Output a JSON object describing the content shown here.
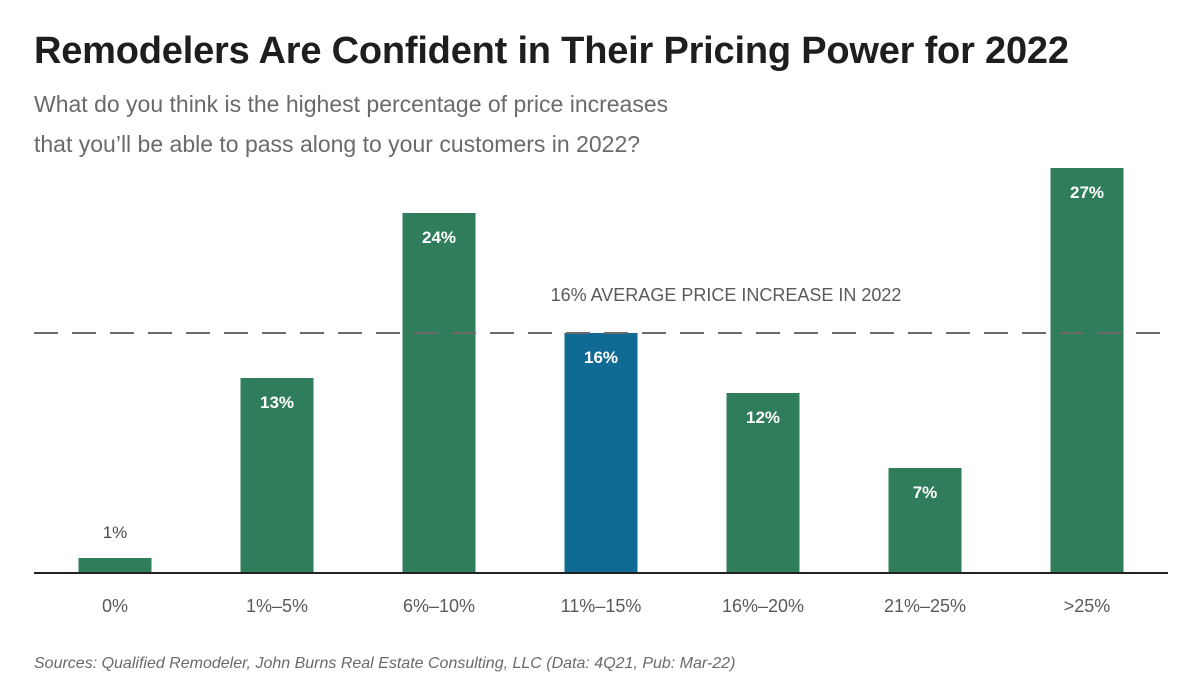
{
  "title": "Remodelers Are Confident in Their Pricing Power for 2022",
  "subtitle_line1": "What do you think is the highest percentage of price increases",
  "subtitle_line2": "that you’ll be able to pass along to your customers in 2022?",
  "source": "Sources: Qualified Remodeler, John Burns Real Estate Consulting, LLC (Data: 4Q21, Pub: Mar-22)",
  "colors": {
    "bar": "#2f7d5a",
    "highlight": "#0f6b94",
    "axis": "#222222",
    "reference_line": "#6b6b6b"
  },
  "chart_data": {
    "type": "bar",
    "categories": [
      "0%",
      "1%–5%",
      "6%–10%",
      "11%–15%",
      "16%–20%",
      "21%–25%",
      ">25%"
    ],
    "values": [
      1,
      13,
      24,
      16,
      12,
      7,
      27
    ],
    "value_labels": [
      "1%",
      "13%",
      "24%",
      "16%",
      "12%",
      "7%",
      "27%"
    ],
    "highlight_category": "11%–15%",
    "ylim": [
      0,
      27
    ],
    "reference_line": {
      "value": 16,
      "label": "16% AVERAGE PRICE INCREASE IN 2022"
    },
    "grid": false
  }
}
